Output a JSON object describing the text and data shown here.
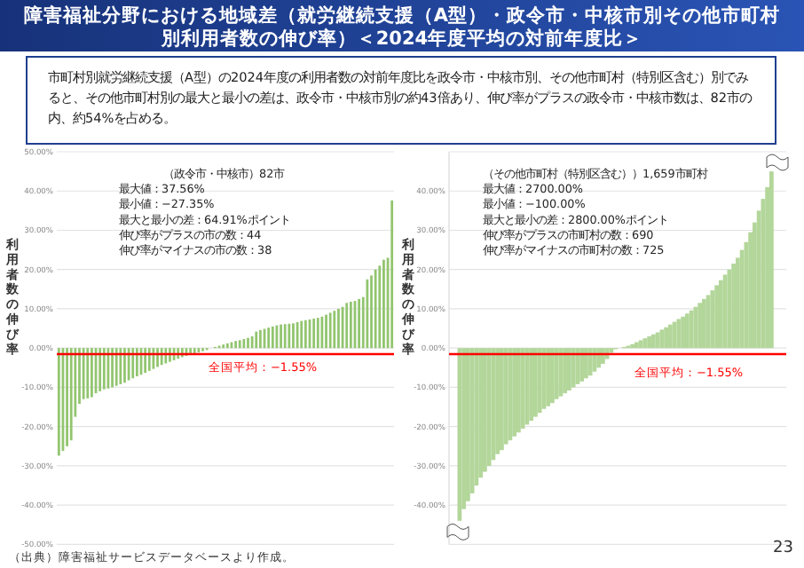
{
  "chart_data": [
    {
      "type": "bar",
      "title": "障害福祉分野における地域差（就労継続支援（A型）・政令市・中核市別その他市町村別利用者数の伸び率）＜2024年度平均の対前年度比＞",
      "subtitle": "市町村別就労継続支援（A型）の2024年度の利用者数の対前年度比を政令市・中核市別、その他市町村（特別区含む）別でみると、その他市町村別の最大と最小の差は、政令市・中核市別の約43倍あり、伸び率がプラスの政令市・中核市数は、82市の内、約54%を占める。",
      "ylabel": "利用者数の伸び率",
      "annotations": [
        "（政令市・中核市）82市",
        "最大値：37.56%",
        "最小値：−27.35%",
        "最大と最小の差：64.91%ポイント",
        "伸び率がプラスの市の数：44",
        "伸び率がマイナスの市の数：38",
        "（出典）障害福祉サービスデータベースより作成。"
      ],
      "categories": [
        null,
        null,
        null,
        null,
        null,
        null,
        null,
        null,
        null,
        null,
        null,
        null,
        null,
        null,
        null,
        null,
        null,
        null,
        null,
        null,
        null,
        null,
        null,
        null,
        null,
        null,
        null,
        null,
        null,
        null,
        null,
        null,
        null,
        null,
        null,
        null,
        null,
        null,
        null,
        null,
        null,
        null,
        null,
        null,
        null,
        null,
        null,
        null,
        null,
        null,
        null,
        null,
        null,
        null,
        null,
        null,
        null,
        null,
        null,
        null,
        null,
        null,
        null,
        null,
        null,
        null,
        null,
        null,
        null,
        null,
        null,
        null,
        null,
        null,
        null,
        null,
        null,
        null,
        null,
        null,
        null,
        null
      ],
      "values": [
        -27.4,
        -26.2,
        -25.0,
        -23.5,
        -17.5,
        -14.2,
        -13.0,
        -12.8,
        -12.5,
        -11.5,
        -11.0,
        -10.5,
        -10.3,
        -10.0,
        -9.6,
        -9.2,
        -8.8,
        -8.2,
        -7.7,
        -7.2,
        -6.8,
        -6.3,
        -5.8,
        -5.3,
        -4.8,
        -4.3,
        -3.9,
        -3.5,
        -3.1,
        -2.7,
        -2.3,
        -2.0,
        -1.7,
        -1.4,
        -1.1,
        -0.8,
        -0.5,
        null,
        0.3,
        0.6,
        0.9,
        1.2,
        1.5,
        1.8,
        2.0,
        2.3,
        2.6,
        3.0,
        4.2,
        4.6,
        4.9,
        5.2,
        5.5,
        5.8,
        6.0,
        6.1,
        6.2,
        6.3,
        6.6,
        6.9,
        7.1,
        7.3,
        7.5,
        7.7,
        8.0,
        8.5,
        9.0,
        9.5,
        10.0,
        10.5,
        11.5,
        11.8,
        12.0,
        12.5,
        13.0,
        17.5,
        18.5,
        20.0,
        21.0,
        22.5,
        23.0,
        37.6
      ],
      "color": "#92c56f",
      "ylim": [
        -50,
        50
      ],
      "yticks": [
        {
          "value": -50,
          "label": "-50.00%"
        },
        {
          "value": -40,
          "label": "-40.00%"
        },
        {
          "value": -30,
          "label": "-30.00%"
        },
        {
          "value": -20,
          "label": "-20.00%"
        },
        {
          "value": -10,
          "label": "-10.00%"
        },
        {
          "value": 0,
          "label": "0.00%"
        },
        {
          "value": 10,
          "label": "10.00%"
        },
        {
          "value": 20,
          "label": "20.00%"
        },
        {
          "value": 30,
          "label": "30.00%"
        },
        {
          "value": 40,
          "label": "40.00%"
        },
        {
          "value": 50,
          "label": "50.00%"
        }
      ],
      "grid": "y",
      "ref_lines": [
        {
          "axis": "y",
          "value": -1.55,
          "label": "全国平均：−1.55%",
          "color": "#ff0000"
        }
      ]
    },
    {
      "type": "bar",
      "ylabel": "利用者数の伸び率",
      "annotations": [
        "（その他市町村（特別区含む））1,659市町村",
        "最大値：2700.00%",
        "最小値：−100.00%",
        "最大と最小の差：2800.00%ポイント",
        "伸び率がプラスの市町村の数：690",
        "伸び率がマイナスの市町村の数：725",
        "23"
      ],
      "categories": [
        null,
        null,
        null,
        null,
        null,
        null,
        null,
        null,
        null,
        null,
        null,
        null,
        null,
        null,
        null,
        null,
        null,
        null,
        null,
        null,
        null,
        null,
        null,
        null,
        null,
        null,
        null,
        null,
        null,
        null,
        null,
        null,
        null,
        null,
        null,
        null,
        null,
        null,
        null,
        null,
        null,
        null,
        null,
        null,
        null,
        null,
        null,
        null,
        null,
        null,
        null,
        null,
        null,
        null,
        null,
        null,
        null,
        null,
        null,
        null,
        null,
        null,
        null,
        null,
        null,
        null,
        null,
        null,
        null,
        null,
        null,
        null,
        null,
        null,
        null,
        null,
        null,
        null,
        null,
        null
      ],
      "values": [
        null,
        null,
        -44,
        -41,
        -39,
        -37,
        -35,
        -33,
        -31.5,
        -30,
        -28.5,
        -27,
        -26,
        -24.5,
        -23.5,
        -22.5,
        -21.5,
        -20.5,
        -19.5,
        -18.5,
        -17.5,
        -16.5,
        -15.5,
        -14.8,
        -14,
        -13,
        -12.3,
        -11.5,
        -10.8,
        -10,
        -9.2,
        -8.5,
        -7.7,
        -7,
        -6,
        -5,
        -4,
        -2.8,
        -1.2,
        -0.3,
        null,
        0.3,
        0.6,
        1,
        1.5,
        2,
        2.5,
        3,
        3.5,
        4,
        4.7,
        5.3,
        6,
        6.7,
        7.4,
        8,
        8.8,
        9.6,
        10.5,
        11.5,
        12.5,
        13.5,
        14.7,
        16,
        17.3,
        18.7,
        20,
        21.5,
        23,
        25,
        27,
        29.5,
        32,
        35,
        38,
        41,
        45,
        null,
        null,
        null
      ],
      "color": "#b3d69a",
      "ylim": [
        -50,
        50
      ],
      "yticks": [
        {
          "value": -40,
          "label": "-40.00%"
        },
        {
          "value": -30,
          "label": "-30.00%"
        },
        {
          "value": -20,
          "label": "-20.00%"
        },
        {
          "value": -10,
          "label": "-10.00%"
        },
        {
          "value": 0,
          "label": "0.00%"
        },
        {
          "value": 10,
          "label": "10.00%"
        },
        {
          "value": 20,
          "label": "20.00%"
        },
        {
          "value": 30,
          "label": "30.00%"
        },
        {
          "value": 40,
          "label": "40.00%"
        }
      ],
      "grid": "y",
      "ref_lines": [
        {
          "axis": "y",
          "value": -1.55,
          "label": "全国平均：−1.55%",
          "color": "#ff0000"
        }
      ]
    }
  ]
}
